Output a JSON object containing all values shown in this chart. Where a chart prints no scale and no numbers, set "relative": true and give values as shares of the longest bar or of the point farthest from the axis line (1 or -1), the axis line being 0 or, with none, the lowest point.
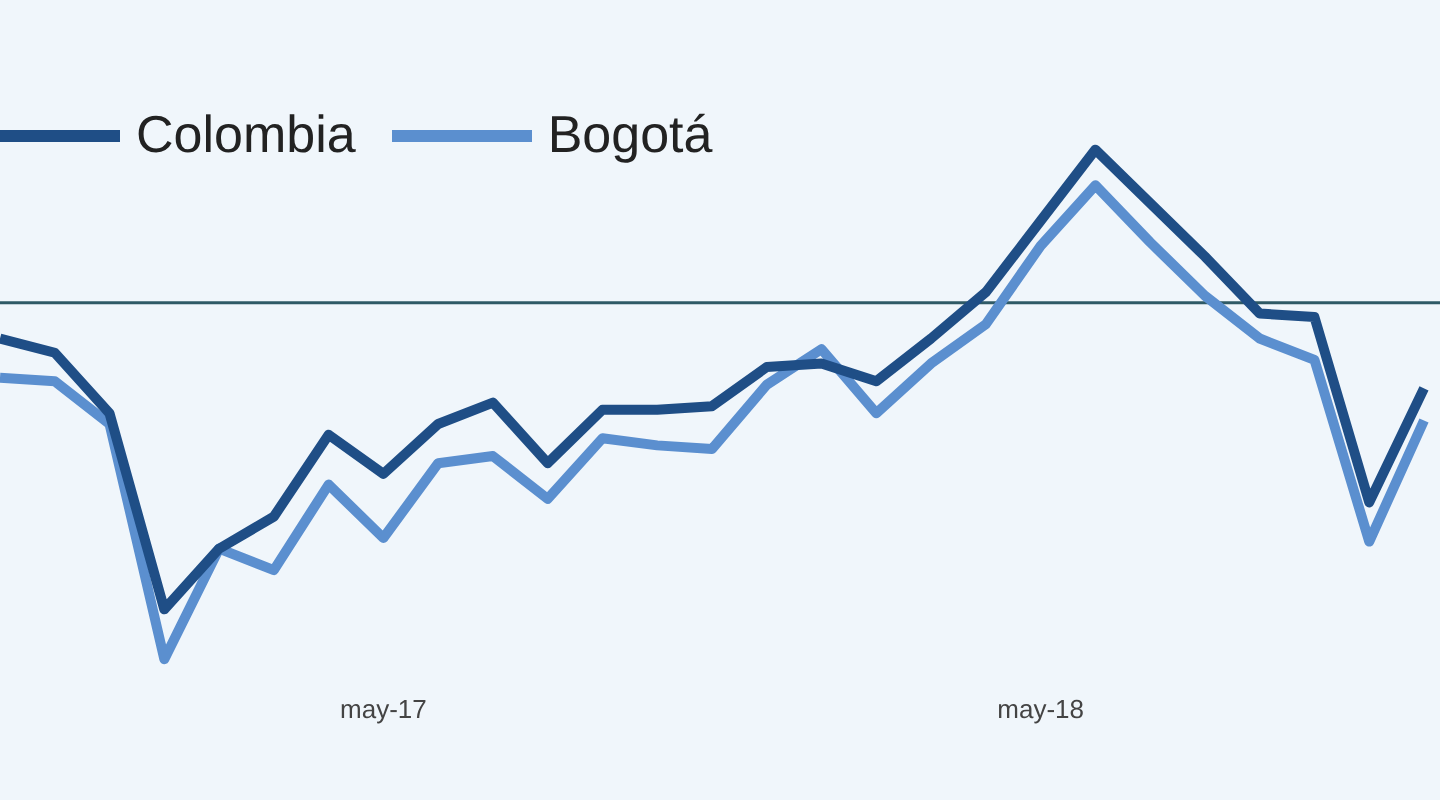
{
  "chart_data": {
    "type": "line",
    "relative": true,
    "legend": "top left",
    "grid": false,
    "marker": "none",
    "line_style": "solid",
    "ref_lines": [
      {
        "axis": "y",
        "value": 0,
        "color": "#2f5a66"
      }
    ],
    "categories": [
      null,
      null,
      null,
      null,
      null,
      null,
      null,
      "may-17",
      null,
      null,
      null,
      null,
      null,
      null,
      null,
      null,
      null,
      null,
      null,
      "may-18",
      null,
      null,
      null,
      null,
      null,
      null,
      null
    ],
    "series": [
      {
        "name": "Colombia",
        "color": "#1f4e86",
        "values": [
          -0.1,
          -0.14,
          -0.31,
          -0.86,
          -0.69,
          -0.6,
          -0.37,
          -0.48,
          -0.34,
          -0.28,
          -0.45,
          -0.3,
          -0.3,
          -0.29,
          -0.18,
          -0.17,
          -0.22,
          -0.1,
          0.03,
          0.23,
          0.43,
          0.28,
          0.13,
          -0.03,
          -0.04,
          -0.56,
          -0.24
        ]
      },
      {
        "name": "Bogotá",
        "color": "#5b8fcf",
        "values": [
          -0.21,
          -0.22,
          -0.34,
          -1,
          -0.69,
          -0.75,
          -0.51,
          -0.66,
          -0.45,
          -0.43,
          -0.55,
          -0.38,
          -0.4,
          -0.41,
          -0.23,
          -0.13,
          -0.31,
          -0.17,
          -0.06,
          0.16,
          0.33,
          0.17,
          0.02,
          -0.1,
          -0.16,
          -0.67,
          -0.33
        ]
      }
    ]
  }
}
